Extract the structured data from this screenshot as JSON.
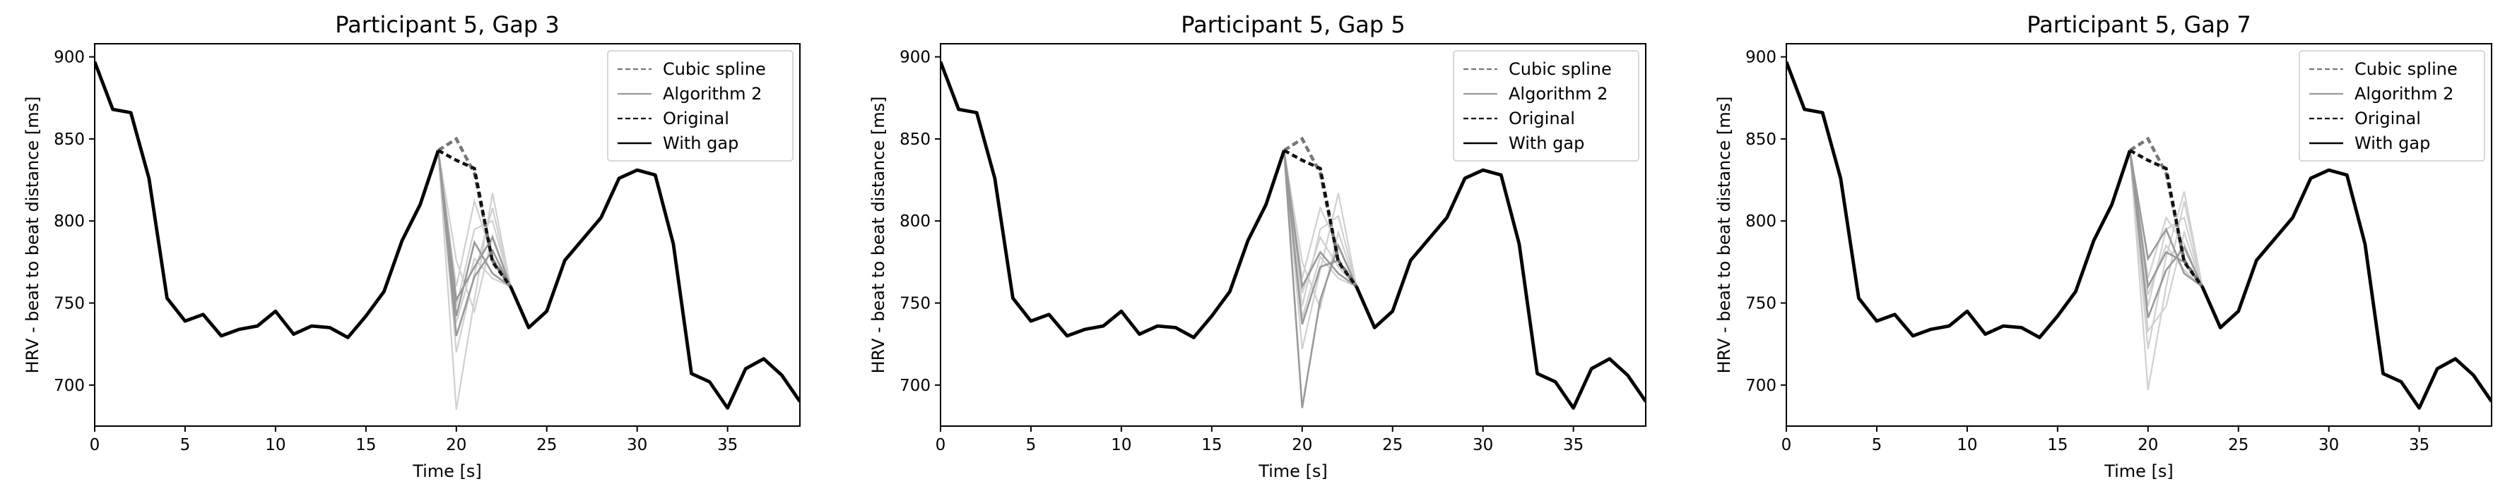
{
  "chart_data": [
    {
      "type": "line",
      "title": "Participant 5, Gap 3",
      "xlabel": "Time [s]",
      "ylabel": "HRV - beat to beat distance [ms]",
      "xlim": [
        0,
        39
      ],
      "ylim": [
        675,
        908
      ],
      "xticks": [
        0,
        5,
        10,
        15,
        20,
        25,
        30,
        35
      ],
      "yticks": [
        700,
        750,
        800,
        850,
        900
      ],
      "grid": false,
      "legend_position": "top-right",
      "legend": [
        "Cubic spline",
        "Algorithm 2",
        "Original",
        "With gap"
      ],
      "gap": [
        20,
        22
      ],
      "with_gap": {
        "x": [
          0,
          1,
          2,
          3,
          4,
          5,
          6,
          7,
          8,
          9,
          10,
          11,
          12,
          13,
          14,
          15,
          16,
          17,
          18,
          19,
          null,
          23,
          24,
          25,
          26,
          27,
          28,
          29,
          30,
          31,
          32,
          33,
          34,
          35,
          36,
          37,
          38,
          39
        ],
        "y": [
          897,
          868,
          866,
          826,
          753,
          739,
          743,
          730,
          734,
          736,
          745,
          731,
          736,
          735,
          729,
          742,
          757,
          788,
          810,
          843,
          null,
          760,
          735,
          745,
          776,
          789,
          802,
          826,
          831,
          828,
          786,
          707,
          702,
          686,
          710,
          716,
          706,
          690
        ]
      },
      "original": {
        "x": [
          19,
          20,
          21,
          22,
          23
        ],
        "y": [
          843,
          837,
          832,
          775,
          760
        ]
      },
      "cubic_spline": {
        "x": [
          19,
          20,
          21,
          22,
          23
        ],
        "y": [
          843,
          850,
          829,
          776,
          760
        ]
      },
      "algorithm2": [
        {
          "x": [
            19,
            20,
            21,
            22,
            23
          ],
          "y": [
            843,
            730,
            766,
            782,
            760
          ]
        },
        {
          "x": [
            19,
            20,
            21,
            22,
            23
          ],
          "y": [
            843,
            752,
            772,
            790,
            760
          ]
        },
        {
          "x": [
            19,
            20,
            21,
            22,
            23
          ],
          "y": [
            843,
            742,
            787,
            768,
            760
          ]
        }
      ],
      "candidates": [
        {
          "x": [
            19,
            20,
            21,
            22,
            23
          ],
          "y": [
            843,
            685,
            752,
            817,
            760
          ]
        },
        {
          "x": [
            19,
            20,
            21,
            22,
            23
          ],
          "y": [
            843,
            720,
            768,
            808,
            760
          ]
        },
        {
          "x": [
            19,
            20,
            21,
            22,
            23
          ],
          "y": [
            843,
            748,
            795,
            800,
            760
          ]
        },
        {
          "x": [
            19,
            20,
            21,
            22,
            23
          ],
          "y": [
            843,
            760,
            812,
            778,
            760
          ]
        },
        {
          "x": [
            19,
            20,
            21,
            22,
            23
          ],
          "y": [
            843,
            776,
            745,
            791,
            760
          ]
        },
        {
          "x": [
            19,
            20,
            21,
            22,
            23
          ],
          "y": [
            843,
            738,
            777,
            765,
            760
          ]
        }
      ]
    },
    {
      "type": "line",
      "title": "Participant 5, Gap 5",
      "xlabel": "Time [s]",
      "ylabel": "HRV - beat to beat distance [ms]",
      "xlim": [
        0,
        39
      ],
      "ylim": [
        675,
        908
      ],
      "xticks": [
        0,
        5,
        10,
        15,
        20,
        25,
        30,
        35
      ],
      "yticks": [
        700,
        750,
        800,
        850,
        900
      ],
      "grid": false,
      "legend_position": "top-right",
      "legend": [
        "Cubic spline",
        "Algorithm 2",
        "Original",
        "With gap"
      ],
      "gap": [
        20,
        22
      ],
      "with_gap": {
        "x": [
          0,
          1,
          2,
          3,
          4,
          5,
          6,
          7,
          8,
          9,
          10,
          11,
          12,
          13,
          14,
          15,
          16,
          17,
          18,
          19,
          null,
          23,
          24,
          25,
          26,
          27,
          28,
          29,
          30,
          31,
          32,
          33,
          34,
          35,
          36,
          37,
          38,
          39
        ],
        "y": [
          897,
          868,
          866,
          826,
          753,
          739,
          743,
          730,
          734,
          736,
          745,
          731,
          736,
          735,
          729,
          742,
          757,
          788,
          810,
          843,
          null,
          760,
          735,
          745,
          776,
          789,
          802,
          826,
          831,
          828,
          786,
          707,
          702,
          686,
          710,
          716,
          706,
          690
        ]
      },
      "original": {
        "x": [
          19,
          20,
          21,
          22,
          23
        ],
        "y": [
          843,
          837,
          832,
          775,
          760
        ]
      },
      "cubic_spline": {
        "x": [
          19,
          20,
          21,
          22,
          23
        ],
        "y": [
          843,
          850,
          829,
          776,
          760
        ]
      },
      "algorithm2": [
        {
          "x": [
            19,
            20,
            21,
            22,
            23
          ],
          "y": [
            843,
            686,
            752,
            785,
            760
          ]
        },
        {
          "x": [
            19,
            20,
            21,
            22,
            23
          ],
          "y": [
            843,
            737,
            772,
            776,
            760
          ]
        },
        {
          "x": [
            19,
            20,
            21,
            22,
            23
          ],
          "y": [
            843,
            760,
            781,
            768,
            760
          ]
        }
      ],
      "candidates": [
        {
          "x": [
            19,
            20,
            21,
            22,
            23
          ],
          "y": [
            843,
            722,
            770,
            817,
            760
          ]
        },
        {
          "x": [
            19,
            20,
            21,
            22,
            23
          ],
          "y": [
            843,
            748,
            795,
            803,
            760
          ]
        },
        {
          "x": [
            19,
            20,
            21,
            22,
            23
          ],
          "y": [
            843,
            765,
            808,
            784,
            760
          ]
        },
        {
          "x": [
            19,
            20,
            21,
            22,
            23
          ],
          "y": [
            843,
            775,
            747,
            793,
            760
          ]
        },
        {
          "x": [
            19,
            20,
            21,
            22,
            23
          ],
          "y": [
            843,
            741,
            778,
            765,
            760
          ]
        },
        {
          "x": [
            19,
            20,
            21,
            22,
            23
          ],
          "y": [
            843,
            756,
            790,
            772,
            760
          ]
        }
      ]
    },
    {
      "type": "line",
      "title": "Participant 5, Gap 7",
      "xlabel": "Time [s]",
      "ylabel": "HRV - beat to beat distance [ms]",
      "xlim": [
        0,
        39
      ],
      "ylim": [
        675,
        908
      ],
      "xticks": [
        0,
        5,
        10,
        15,
        20,
        25,
        30,
        35
      ],
      "yticks": [
        700,
        750,
        800,
        850,
        900
      ],
      "grid": false,
      "legend_position": "top-right",
      "legend": [
        "Cubic spline",
        "Algorithm 2",
        "Original",
        "With gap"
      ],
      "gap": [
        20,
        22
      ],
      "with_gap": {
        "x": [
          0,
          1,
          2,
          3,
          4,
          5,
          6,
          7,
          8,
          9,
          10,
          11,
          12,
          13,
          14,
          15,
          16,
          17,
          18,
          19,
          null,
          23,
          24,
          25,
          26,
          27,
          28,
          29,
          30,
          31,
          32,
          33,
          34,
          35,
          36,
          37,
          38,
          39
        ],
        "y": [
          897,
          868,
          866,
          826,
          753,
          739,
          743,
          730,
          734,
          736,
          745,
          731,
          736,
          735,
          729,
          742,
          757,
          788,
          810,
          843,
          null,
          760,
          735,
          745,
          776,
          789,
          802,
          826,
          831,
          828,
          786,
          707,
          702,
          686,
          710,
          716,
          706,
          690
        ]
      },
      "original": {
        "x": [
          19,
          20,
          21,
          22,
          23
        ],
        "y": [
          843,
          837,
          832,
          775,
          760
        ]
      },
      "cubic_spline": {
        "x": [
          19,
          20,
          21,
          22,
          23
        ],
        "y": [
          843,
          850,
          829,
          776,
          760
        ]
      },
      "algorithm2": [
        {
          "x": [
            19,
            20,
            21,
            22,
            23
          ],
          "y": [
            843,
            741,
            770,
            784,
            760
          ]
        },
        {
          "x": [
            19,
            20,
            21,
            22,
            23
          ],
          "y": [
            843,
            760,
            781,
            775,
            760
          ]
        },
        {
          "x": [
            19,
            20,
            21,
            22,
            23
          ],
          "y": [
            843,
            777,
            795,
            768,
            760
          ]
        }
      ],
      "candidates": [
        {
          "x": [
            19,
            20,
            21,
            22,
            23
          ],
          "y": [
            843,
            697,
            760,
            812,
            760
          ]
        },
        {
          "x": [
            19,
            20,
            21,
            22,
            23
          ],
          "y": [
            843,
            722,
            778,
            818,
            760
          ]
        },
        {
          "x": [
            19,
            20,
            21,
            22,
            23
          ],
          "y": [
            843,
            748,
            795,
            802,
            760
          ]
        },
        {
          "x": [
            19,
            20,
            21,
            22,
            23
          ],
          "y": [
            843,
            765,
            802,
            786,
            760
          ]
        },
        {
          "x": [
            19,
            20,
            21,
            22,
            23
          ],
          "y": [
            843,
            733,
            748,
            793,
            760
          ]
        },
        {
          "x": [
            19,
            20,
            21,
            22,
            23
          ],
          "y": [
            843,
            755,
            785,
            770,
            760
          ]
        }
      ]
    }
  ],
  "colors": {
    "with_gap": "#000000",
    "original": "#111111",
    "cubic_spline": "#777777",
    "algorithm2": "#999999",
    "candidates": "#d0d0d0",
    "axes": "#000000"
  }
}
